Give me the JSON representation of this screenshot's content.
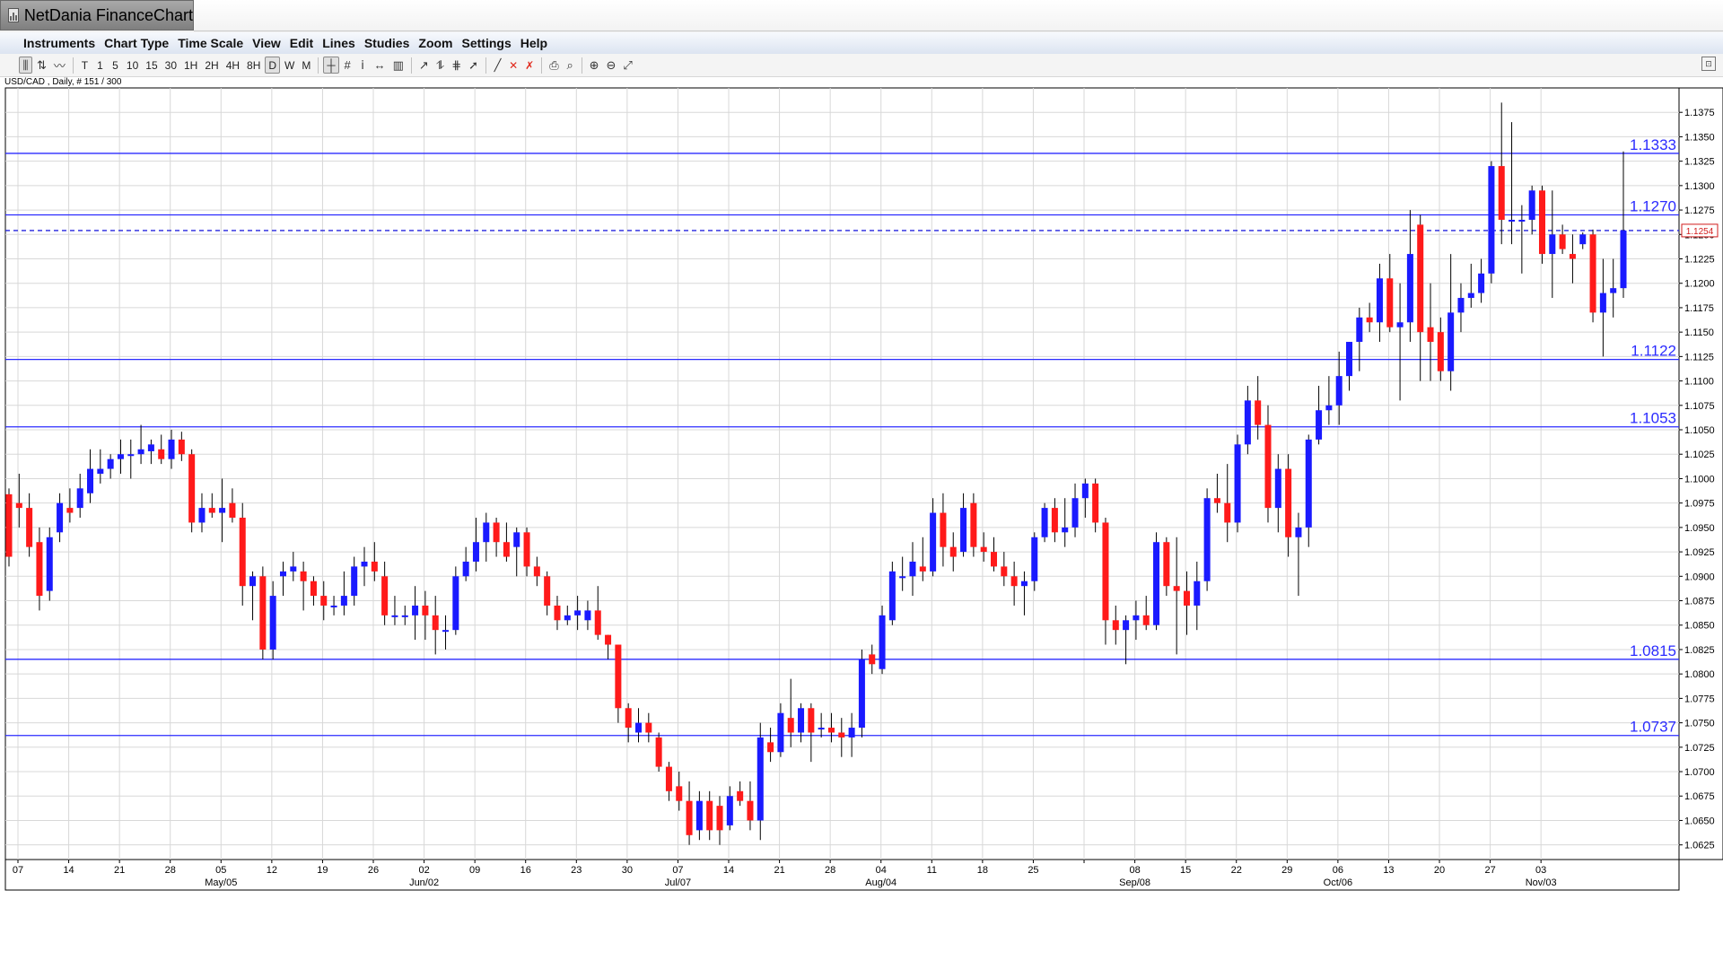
{
  "app": {
    "title": "NetDania FinanceChart"
  },
  "menu": [
    "Instruments",
    "Chart Type",
    "Time Scale",
    "View",
    "Edit",
    "Lines",
    "Studies",
    "Zoom",
    "Settings",
    "Help"
  ],
  "toolbar": {
    "timeframes": [
      "T",
      "1",
      "5",
      "10",
      "15",
      "30",
      "1H",
      "2H",
      "4H",
      "8H",
      "D",
      "W",
      "M"
    ],
    "active_timeframe": "D"
  },
  "chart_data": {
    "type": "candlestick",
    "symbol_label": "USD/CAD , Daily, # 151 / 300",
    "current_price": "1.1254",
    "colors": {
      "up": "#1a1aff",
      "down": "#ff1a1a",
      "level": "#2b2bff",
      "current": "#d21c1c",
      "grid": "#d8d8d8"
    },
    "ylim": [
      1.061,
      1.14
    ],
    "y_ticks": [
      "1.0625",
      "1.0650",
      "1.0675",
      "1.0700",
      "1.0725",
      "1.0750",
      "1.0775",
      "1.0800",
      "1.0825",
      "1.0850",
      "1.0875",
      "1.0900",
      "1.0925",
      "1.0950",
      "1.0975",
      "1.1000",
      "1.1025",
      "1.1050",
      "1.1075",
      "1.1100",
      "1.1125",
      "1.1150",
      "1.1175",
      "1.1200",
      "1.1225",
      "1.1250",
      "1.1275",
      "1.1300",
      "1.1325",
      "1.1350",
      "1.1375"
    ],
    "x_ticks": [
      {
        "label": "07",
        "month": ""
      },
      {
        "label": "14",
        "month": ""
      },
      {
        "label": "21",
        "month": ""
      },
      {
        "label": "28",
        "month": ""
      },
      {
        "label": "05",
        "month": "May/05"
      },
      {
        "label": "12",
        "month": ""
      },
      {
        "label": "19",
        "month": ""
      },
      {
        "label": "26",
        "month": ""
      },
      {
        "label": "02",
        "month": "Jun/02"
      },
      {
        "label": "09",
        "month": ""
      },
      {
        "label": "16",
        "month": ""
      },
      {
        "label": "23",
        "month": ""
      },
      {
        "label": "30",
        "month": ""
      },
      {
        "label": "07",
        "month": "Jul/07"
      },
      {
        "label": "14",
        "month": ""
      },
      {
        "label": "21",
        "month": ""
      },
      {
        "label": "28",
        "month": ""
      },
      {
        "label": "04",
        "month": "Aug/04"
      },
      {
        "label": "11",
        "month": ""
      },
      {
        "label": "18",
        "month": ""
      },
      {
        "label": "25",
        "month": ""
      },
      {
        "label": "",
        "month": ""
      },
      {
        "label": "08",
        "month": "Sep/08"
      },
      {
        "label": "15",
        "month": ""
      },
      {
        "label": "22",
        "month": ""
      },
      {
        "label": "29",
        "month": ""
      },
      {
        "label": "06",
        "month": "Oct/06"
      },
      {
        "label": "13",
        "month": ""
      },
      {
        "label": "20",
        "month": ""
      },
      {
        "label": "27",
        "month": ""
      },
      {
        "label": "03",
        "month": "Nov/03"
      }
    ],
    "levels": [
      "1.1333",
      "1.1270",
      "1.1122",
      "1.1053",
      "1.0815",
      "1.0737"
    ],
    "ohlc": [
      [
        1.0984,
        1.099,
        1.091,
        1.092
      ],
      [
        1.0975,
        1.1005,
        1.095,
        1.097
      ],
      [
        1.097,
        1.0985,
        1.092,
        1.093
      ],
      [
        1.0935,
        1.095,
        1.0865,
        1.088
      ],
      [
        1.0885,
        1.095,
        1.0875,
        1.094
      ],
      [
        1.0945,
        1.0985,
        1.0935,
        1.0975
      ],
      [
        1.097,
        1.099,
        1.0955,
        1.0965
      ],
      [
        1.097,
        1.1005,
        1.096,
        1.099
      ],
      [
        1.0985,
        1.103,
        1.0975,
        1.101
      ],
      [
        1.1005,
        1.103,
        1.0995,
        1.101
      ],
      [
        1.101,
        1.1025,
        1.1,
        1.102
      ],
      [
        1.102,
        1.104,
        1.1005,
        1.1025
      ],
      [
        1.1025,
        1.104,
        1.1,
        1.1025
      ],
      [
        1.1025,
        1.1055,
        1.1015,
        1.103
      ],
      [
        1.1028,
        1.104,
        1.1015,
        1.1035
      ],
      [
        1.103,
        1.1045,
        1.1015,
        1.102
      ],
      [
        1.102,
        1.105,
        1.101,
        1.104
      ],
      [
        1.104,
        1.1048,
        1.1018,
        1.1025
      ],
      [
        1.1025,
        1.103,
        1.0945,
        1.0955
      ],
      [
        1.0955,
        1.0985,
        1.0945,
        1.097
      ],
      [
        1.097,
        1.0985,
        1.096,
        1.0965
      ],
      [
        1.0965,
        1.1,
        1.0935,
        1.097
      ],
      [
        1.0975,
        1.099,
        1.0955,
        1.096
      ],
      [
        1.096,
        1.0975,
        1.087,
        1.089
      ],
      [
        1.089,
        1.0905,
        1.0855,
        1.09
      ],
      [
        1.09,
        1.091,
        1.0815,
        1.0825
      ],
      [
        1.0825,
        1.0895,
        1.0815,
        1.088
      ],
      [
        1.09,
        1.0915,
        1.088,
        1.0905
      ],
      [
        1.0905,
        1.0925,
        1.0895,
        1.091
      ],
      [
        1.0905,
        1.0915,
        1.0865,
        1.0895
      ],
      [
        1.0895,
        1.09,
        1.087,
        1.088
      ],
      [
        1.088,
        1.0895,
        1.0855,
        1.087
      ],
      [
        1.087,
        1.088,
        1.086,
        1.087
      ],
      [
        1.087,
        1.0905,
        1.086,
        1.088
      ],
      [
        1.088,
        1.092,
        1.087,
        1.091
      ],
      [
        1.091,
        1.093,
        1.089,
        1.0915
      ],
      [
        1.0915,
        1.0935,
        1.0895,
        1.0905
      ],
      [
        1.09,
        1.0915,
        1.085,
        1.086
      ],
      [
        1.086,
        1.088,
        1.085,
        1.086
      ],
      [
        1.086,
        1.087,
        1.085,
        1.086
      ],
      [
        1.086,
        1.089,
        1.0835,
        1.087
      ],
      [
        1.087,
        1.0885,
        1.0835,
        1.086
      ],
      [
        1.086,
        1.088,
        1.082,
        1.0845
      ],
      [
        1.0845,
        1.086,
        1.0825,
        1.0845
      ],
      [
        1.0845,
        1.091,
        1.084,
        1.09
      ],
      [
        1.09,
        1.093,
        1.0895,
        1.0915
      ],
      [
        1.0915,
        1.096,
        1.0905,
        1.0935
      ],
      [
        1.0935,
        1.0965,
        1.0915,
        1.0955
      ],
      [
        1.0955,
        1.096,
        1.092,
        1.0935
      ],
      [
        1.0935,
        1.0955,
        1.0915,
        1.092
      ],
      [
        1.093,
        1.095,
        1.09,
        1.0945
      ],
      [
        1.0945,
        1.095,
        1.09,
        1.091
      ],
      [
        1.091,
        1.092,
        1.089,
        1.09
      ],
      [
        1.09,
        1.0905,
        1.086,
        1.087
      ],
      [
        1.087,
        1.088,
        1.0845,
        1.0855
      ],
      [
        1.0855,
        1.087,
        1.085,
        1.086
      ],
      [
        1.086,
        1.088,
        1.0845,
        1.0865
      ],
      [
        1.0855,
        1.0875,
        1.0845,
        1.0865
      ],
      [
        1.0865,
        1.089,
        1.0835,
        1.084
      ],
      [
        1.084,
        1.084,
        1.0815,
        1.083
      ],
      [
        1.083,
        1.083,
        1.075,
        1.0765
      ],
      [
        1.0765,
        1.077,
        1.073,
        1.0745
      ],
      [
        1.074,
        1.0765,
        1.073,
        1.075
      ],
      [
        1.075,
        1.076,
        1.073,
        1.074
      ],
      [
        1.0735,
        1.074,
        1.07,
        1.0705
      ],
      [
        1.0705,
        1.071,
        1.067,
        1.068
      ],
      [
        1.0685,
        1.07,
        1.066,
        1.067
      ],
      [
        1.067,
        1.069,
        1.0625,
        1.0635
      ],
      [
        1.064,
        1.068,
        1.063,
        1.067
      ],
      [
        1.067,
        1.068,
        1.063,
        1.064
      ],
      [
        1.0665,
        1.0675,
        1.0625,
        1.064
      ],
      [
        1.0645,
        1.0685,
        1.064,
        1.0675
      ],
      [
        1.068,
        1.069,
        1.0665,
        1.067
      ],
      [
        1.067,
        1.069,
        1.064,
        1.065
      ],
      [
        1.065,
        1.075,
        1.063,
        1.0735
      ],
      [
        1.073,
        1.0745,
        1.071,
        1.072
      ],
      [
        1.072,
        1.077,
        1.0715,
        1.076
      ],
      [
        1.0755,
        1.0795,
        1.0725,
        1.074
      ],
      [
        1.074,
        1.077,
        1.073,
        1.0765
      ],
      [
        1.0765,
        1.077,
        1.071,
        1.074
      ],
      [
        1.0745,
        1.076,
        1.0735,
        1.0745
      ],
      [
        1.0745,
        1.076,
        1.073,
        1.074
      ],
      [
        1.074,
        1.0755,
        1.0715,
        1.0735
      ],
      [
        1.0735,
        1.076,
        1.0715,
        1.0745
      ],
      [
        1.0745,
        1.0825,
        1.0735,
        1.0815
      ],
      [
        1.082,
        1.083,
        1.08,
        1.081
      ],
      [
        1.0805,
        1.087,
        1.08,
        1.086
      ],
      [
        1.0855,
        1.0915,
        1.085,
        1.0905
      ],
      [
        1.09,
        1.092,
        1.0885,
        1.09
      ],
      [
        1.09,
        1.0935,
        1.088,
        1.0915
      ],
      [
        1.091,
        1.094,
        1.0895,
        1.0905
      ],
      [
        1.0905,
        1.098,
        1.09,
        1.0965
      ],
      [
        1.0965,
        1.0985,
        1.091,
        1.093
      ],
      [
        1.093,
        1.0945,
        1.0905,
        1.092
      ],
      [
        1.0925,
        1.0985,
        1.092,
        1.097
      ],
      [
        1.0975,
        1.0985,
        1.092,
        1.093
      ],
      [
        1.093,
        1.0945,
        1.0915,
        1.0925
      ],
      [
        1.0925,
        1.094,
        1.0905,
        1.091
      ],
      [
        1.091,
        1.0925,
        1.089,
        1.09
      ],
      [
        1.09,
        1.0915,
        1.087,
        1.089
      ],
      [
        1.089,
        1.0905,
        1.086,
        1.0895
      ],
      [
        1.0895,
        1.0945,
        1.0885,
        1.094
      ],
      [
        1.094,
        1.0975,
        1.0935,
        1.097
      ],
      [
        1.097,
        1.098,
        1.0935,
        1.0945
      ],
      [
        1.0945,
        1.098,
        1.093,
        1.095
      ],
      [
        1.095,
        1.0995,
        1.094,
        1.098
      ],
      [
        1.098,
        1.1,
        1.096,
        1.0995
      ],
      [
        1.0995,
        1.1,
        1.0945,
        1.0955
      ],
      [
        1.0955,
        1.096,
        1.083,
        1.0855
      ],
      [
        1.0855,
        1.087,
        1.083,
        1.0845
      ],
      [
        1.0845,
        1.086,
        1.081,
        1.0855
      ],
      [
        1.0855,
        1.0875,
        1.0835,
        1.086
      ],
      [
        1.086,
        1.088,
        1.0845,
        1.085
      ],
      [
        1.085,
        1.0945,
        1.0845,
        1.0935
      ],
      [
        1.0935,
        1.094,
        1.088,
        1.089
      ],
      [
        1.089,
        1.094,
        1.082,
        1.0885
      ],
      [
        1.0885,
        1.0905,
        1.084,
        1.087
      ],
      [
        1.087,
        1.0915,
        1.0845,
        1.0895
      ],
      [
        1.0895,
        1.099,
        1.0885,
        1.098
      ],
      [
        1.098,
        1.1005,
        1.0965,
        1.0975
      ],
      [
        1.0975,
        1.1015,
        1.0935,
        1.0955
      ],
      [
        1.0955,
        1.1045,
        1.0945,
        1.1035
      ],
      [
        1.1035,
        1.1095,
        1.1025,
        1.108
      ],
      [
        1.108,
        1.1105,
        1.104,
        1.1055
      ],
      [
        1.1055,
        1.1075,
        1.0955,
        1.097
      ],
      [
        1.097,
        1.1025,
        1.0945,
        1.101
      ],
      [
        1.101,
        1.1025,
        1.092,
        1.094
      ],
      [
        1.094,
        1.0965,
        1.088,
        1.095
      ],
      [
        1.095,
        1.1045,
        1.093,
        1.104
      ],
      [
        1.104,
        1.1095,
        1.1035,
        1.107
      ],
      [
        1.107,
        1.1105,
        1.1055,
        1.1075
      ],
      [
        1.1075,
        1.113,
        1.1055,
        1.1105
      ],
      [
        1.1105,
        1.114,
        1.109,
        1.114
      ],
      [
        1.114,
        1.1175,
        1.111,
        1.1165
      ],
      [
        1.1165,
        1.118,
        1.115,
        1.116
      ],
      [
        1.116,
        1.122,
        1.114,
        1.1205
      ],
      [
        1.1205,
        1.123,
        1.115,
        1.1155
      ],
      [
        1.1155,
        1.12,
        1.108,
        1.116
      ],
      [
        1.116,
        1.1275,
        1.114,
        1.123
      ],
      [
        1.126,
        1.127,
        1.11,
        1.115
      ],
      [
        1.1155,
        1.12,
        1.11,
        1.114
      ],
      [
        1.115,
        1.1165,
        1.11,
        1.111
      ],
      [
        1.111,
        1.123,
        1.109,
        1.117
      ],
      [
        1.117,
        1.12,
        1.115,
        1.1185
      ],
      [
        1.1185,
        1.122,
        1.1175,
        1.119
      ],
      [
        1.119,
        1.1225,
        1.118,
        1.121
      ],
      [
        1.121,
        1.1325,
        1.12,
        1.132
      ],
      [
        1.132,
        1.1385,
        1.124,
        1.1265
      ],
      [
        1.1265,
        1.1365,
        1.124,
        1.1265
      ],
      [
        1.1265,
        1.128,
        1.121,
        1.1265
      ],
      [
        1.1265,
        1.13,
        1.125,
        1.1295
      ],
      [
        1.1295,
        1.13,
        1.122,
        1.123
      ],
      [
        1.123,
        1.1295,
        1.1185,
        1.125
      ],
      [
        1.125,
        1.126,
        1.123,
        1.1235
      ],
      [
        1.123,
        1.125,
        1.12,
        1.1225
      ],
      [
        1.124,
        1.1252,
        1.1235,
        1.125
      ],
      [
        1.125,
        1.1255,
        1.116,
        1.117
      ],
      [
        1.117,
        1.1225,
        1.1125,
        1.119
      ],
      [
        1.119,
        1.1225,
        1.1165,
        1.1195
      ],
      [
        1.1195,
        1.1335,
        1.1185,
        1.1254
      ]
    ]
  }
}
